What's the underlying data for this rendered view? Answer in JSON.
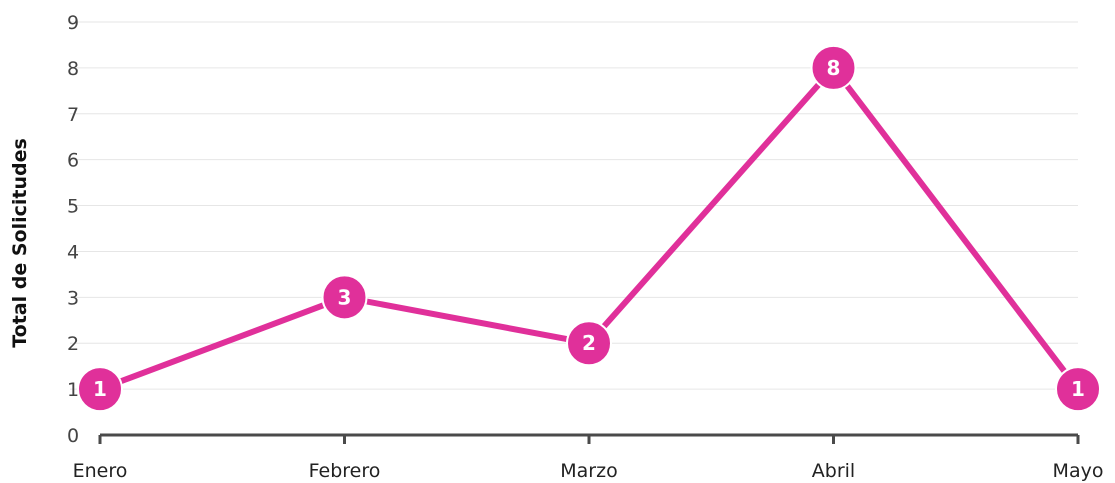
{
  "chart_data": {
    "type": "line",
    "categories": [
      "Enero",
      "Febrero",
      "Marzo",
      "Abril",
      "Mayo"
    ],
    "series": [
      {
        "values": [
          1,
          3,
          2,
          8,
          1
        ]
      }
    ],
    "ylabel": "Total de Solicitudes",
    "xlabel": "",
    "ylim": [
      0,
      9
    ],
    "yticks": [
      0,
      1,
      2,
      3,
      4,
      5,
      6,
      7,
      8,
      9
    ],
    "grid": true,
    "data_labels": true,
    "color": "#e0309a"
  }
}
